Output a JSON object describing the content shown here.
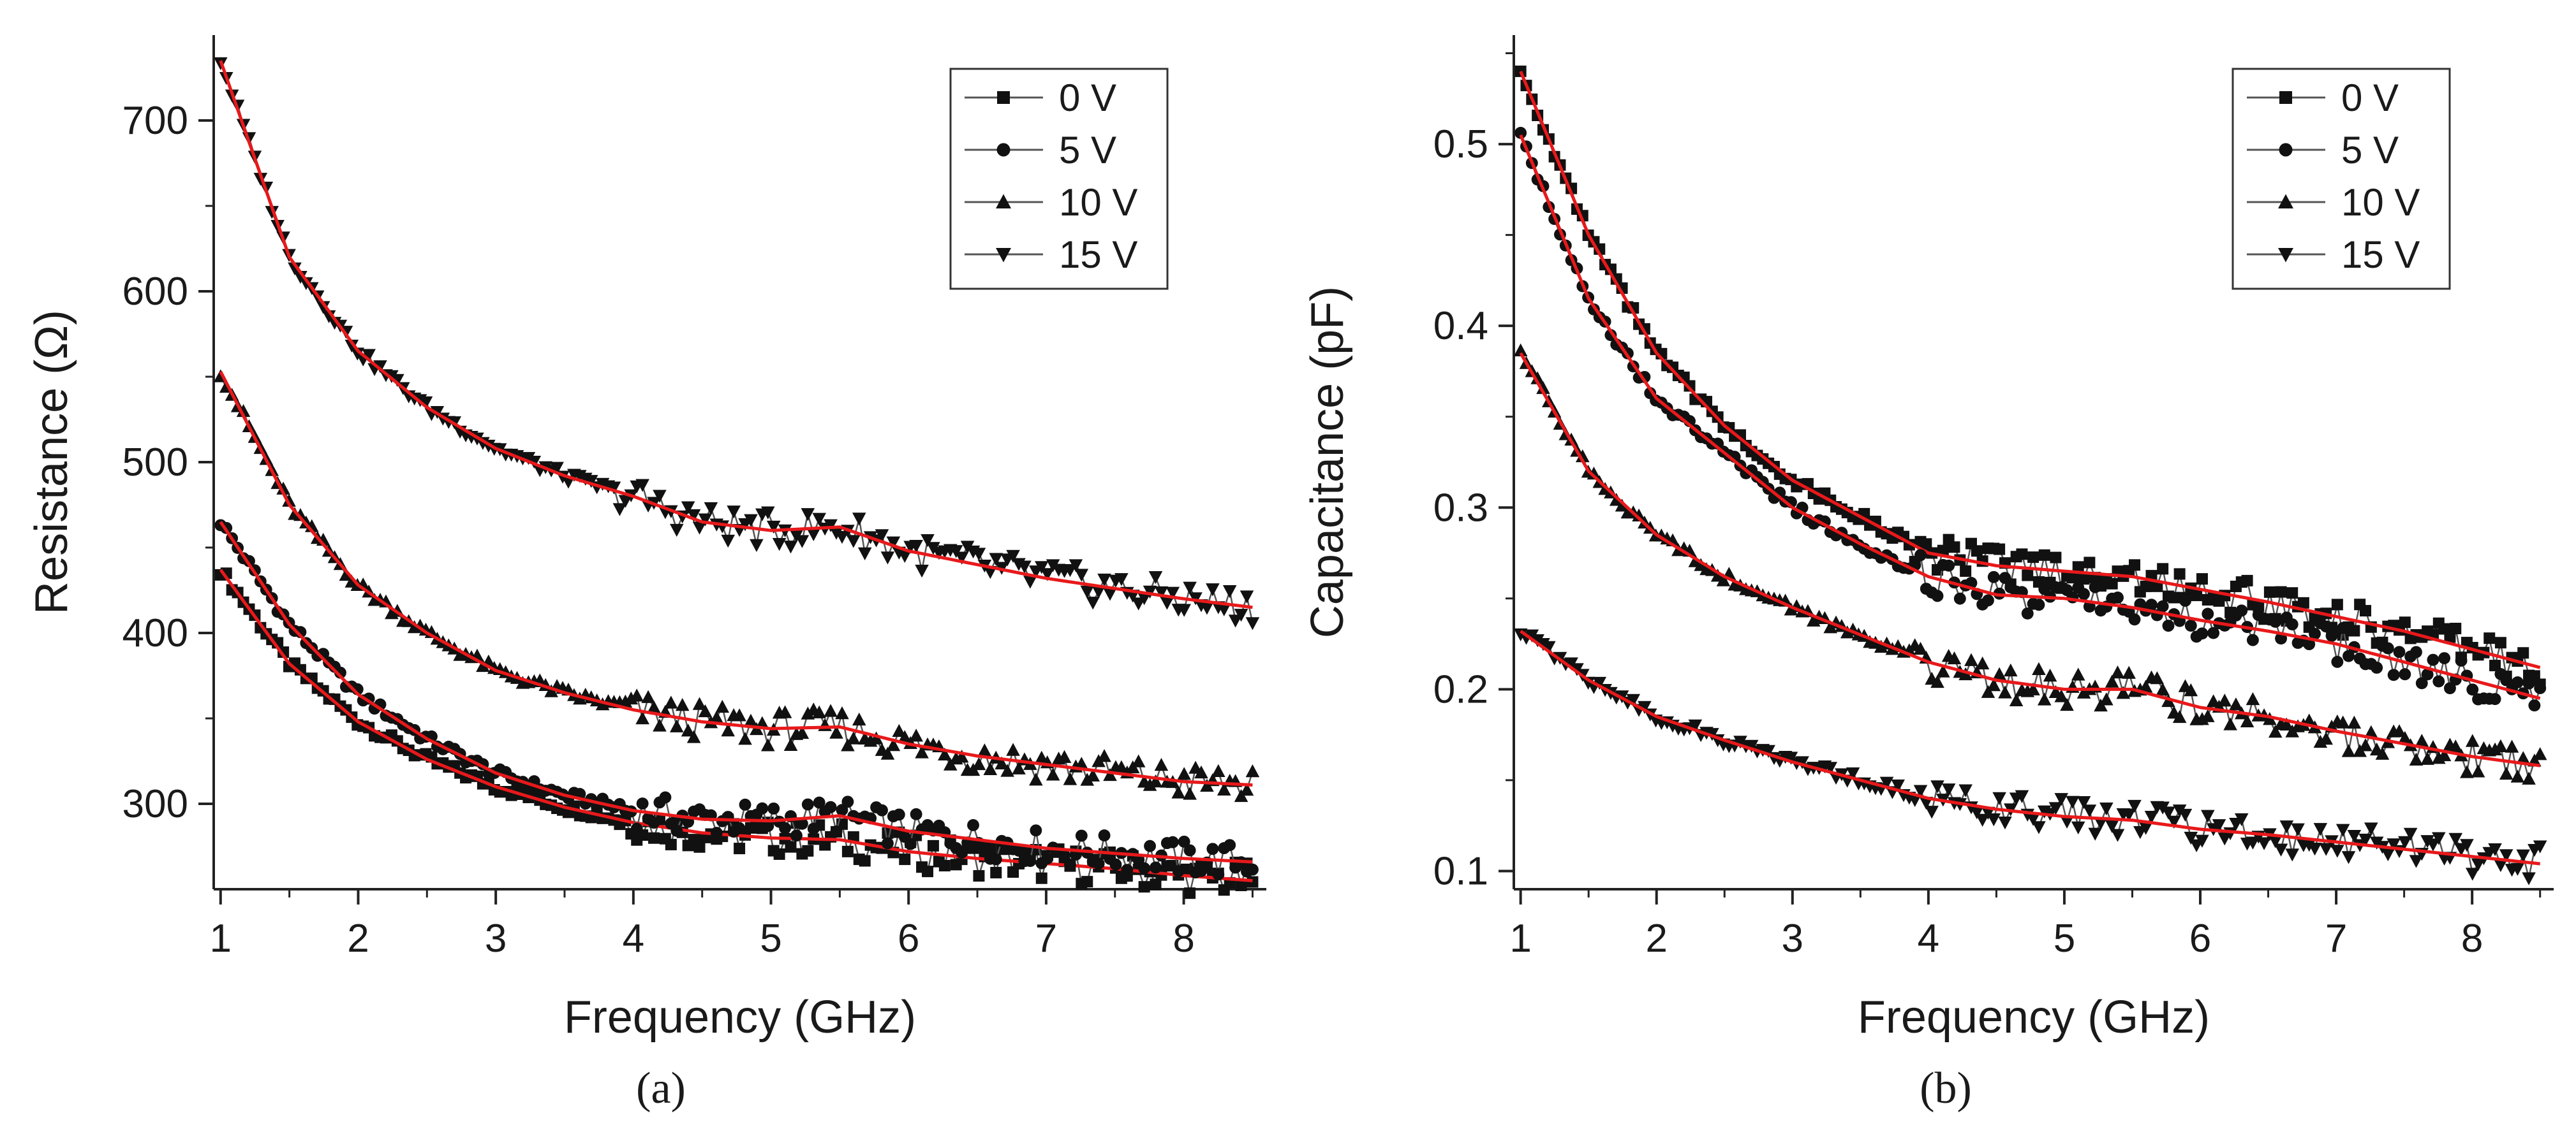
{
  "figure": {
    "panel_labels": [
      "(a)",
      "(b)"
    ],
    "fit_color": "#e8191b",
    "marker_color": "#111111"
  },
  "chart_data": [
    {
      "type": "scatter",
      "title": "",
      "xlabel": "Frequency (GHz)",
      "ylabel": "Resistance (Ω)",
      "xlim": [
        0.95,
        8.6
      ],
      "ylim": [
        250,
        750
      ],
      "xticks": [
        1,
        2,
        3,
        4,
        5,
        6,
        7,
        8
      ],
      "yticks": [
        300,
        400,
        500,
        600,
        700
      ],
      "grid": false,
      "legend_position": "top-right",
      "series": [
        {
          "name": "0 V",
          "marker": "square",
          "x": [
            1,
            1.5,
            2,
            2.5,
            3,
            3.5,
            4,
            4.5,
            5,
            5.5,
            6,
            6.5,
            7,
            7.5,
            8,
            8.5
          ],
          "values": [
            437,
            382,
            348,
            326,
            310,
            298,
            289,
            283,
            280,
            279,
            272,
            268,
            265,
            262,
            258,
            255
          ]
        },
        {
          "name": "5 V",
          "marker": "circle",
          "x": [
            1,
            1.5,
            2,
            2.5,
            3,
            3.5,
            4,
            4.5,
            5,
            5.5,
            6,
            6.5,
            7,
            7.5,
            8,
            8.5
          ],
          "values": [
            465,
            405,
            364,
            338,
            318,
            305,
            296,
            291,
            290,
            293,
            284,
            279,
            274,
            271,
            268,
            266
          ]
        },
        {
          "name": "10 V",
          "marker": "triangle-up",
          "x": [
            1,
            1.5,
            2,
            2.5,
            3,
            3.5,
            4,
            4.5,
            5,
            5.5,
            6,
            6.5,
            7,
            7.5,
            8,
            8.5
          ],
          "values": [
            553,
            475,
            428,
            400,
            378,
            365,
            355,
            348,
            344,
            345,
            335,
            328,
            323,
            318,
            313,
            311
          ]
        },
        {
          "name": "15 V",
          "marker": "triangle-down",
          "x": [
            1,
            1.5,
            2,
            2.5,
            3,
            3.5,
            4,
            4.5,
            5,
            5.5,
            6,
            6.5,
            7,
            7.5,
            8,
            8.5
          ],
          "values": [
            735,
            620,
            565,
            532,
            508,
            492,
            480,
            465,
            460,
            462,
            448,
            440,
            432,
            426,
            420,
            415
          ]
        }
      ]
    },
    {
      "type": "scatter",
      "title": "",
      "xlabel": "Frequency (GHz)",
      "ylabel": "Capacitance (pF)",
      "xlim": [
        0.95,
        8.6
      ],
      "ylim": [
        0.09,
        0.56
      ],
      "xticks": [
        1,
        2,
        3,
        4,
        5,
        6,
        7,
        8
      ],
      "yticks": [
        0.1,
        0.2,
        0.3,
        0.4,
        0.5
      ],
      "grid": false,
      "legend_position": "top-right",
      "series": [
        {
          "name": "0 V",
          "marker": "square",
          "x": [
            1,
            1.5,
            2,
            2.5,
            3,
            3.5,
            4,
            4.5,
            5,
            5.5,
            6,
            6.5,
            7,
            7.5,
            8,
            8.5
          ],
          "values": [
            0.54,
            0.45,
            0.385,
            0.345,
            0.315,
            0.295,
            0.275,
            0.268,
            0.265,
            0.262,
            0.255,
            0.248,
            0.24,
            0.232,
            0.222,
            0.212
          ]
        },
        {
          "name": "5 V",
          "marker": "circle",
          "x": [
            1,
            1.5,
            2,
            2.5,
            3,
            3.5,
            4,
            4.5,
            5,
            5.5,
            6,
            6.5,
            7,
            7.5,
            8,
            8.5
          ],
          "values": [
            0.505,
            0.415,
            0.36,
            0.33,
            0.3,
            0.28,
            0.262,
            0.252,
            0.25,
            0.245,
            0.238,
            0.232,
            0.225,
            0.215,
            0.205,
            0.195
          ]
        },
        {
          "name": "10 V",
          "marker": "triangle-up",
          "x": [
            1,
            1.5,
            2,
            2.5,
            3,
            3.5,
            4,
            4.5,
            5,
            5.5,
            6,
            6.5,
            7,
            7.5,
            8,
            8.5
          ],
          "values": [
            0.385,
            0.32,
            0.285,
            0.262,
            0.245,
            0.23,
            0.215,
            0.205,
            0.2,
            0.2,
            0.19,
            0.185,
            0.177,
            0.17,
            0.163,
            0.158
          ]
        },
        {
          "name": "15 V",
          "marker": "triangle-down",
          "x": [
            1,
            1.5,
            2,
            2.5,
            3,
            3.5,
            4,
            4.5,
            5,
            5.5,
            6,
            6.5,
            7,
            7.5,
            8,
            8.5
          ],
          "values": [
            0.232,
            0.205,
            0.185,
            0.172,
            0.16,
            0.15,
            0.14,
            0.134,
            0.13,
            0.128,
            0.123,
            0.12,
            0.116,
            0.112,
            0.108,
            0.104
          ]
        }
      ]
    }
  ]
}
